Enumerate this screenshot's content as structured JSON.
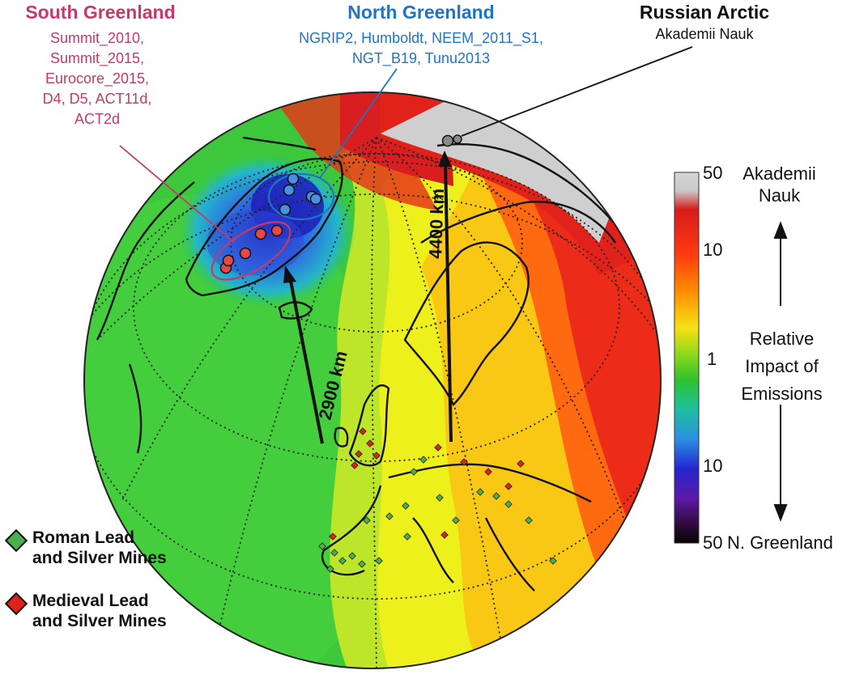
{
  "regions": {
    "south": {
      "title": "South Greenland",
      "lines": [
        "Summit_2010,",
        "Summit_2015,",
        "Eurocore_2015,",
        "D4, D5, ACT11d,",
        "ACT2d"
      ],
      "color": "#c33a6b"
    },
    "north": {
      "title": "North Greenland",
      "lines": [
        "NGRIP2, Humboldt, NEEM_2011_S1,",
        "NGT_B19, Tunu2013"
      ],
      "color": "#1f74c4"
    },
    "russian": {
      "title": "Russian Arctic",
      "lines": [
        "Akademii Nauk"
      ],
      "color": "#111111"
    }
  },
  "distances": {
    "greenland": "2900 km",
    "russian": "4400 km"
  },
  "colorbar": {
    "top_tick": "50",
    "upper_tick": "10",
    "mid_tick": "1",
    "lower_tick": "10",
    "bottom_tick": "50",
    "top_label": "Akademii Nauk",
    "bottom_label": "N. Greenland",
    "middle_label": [
      "Relative",
      "Impact of",
      "Emissions"
    ],
    "scale": "log"
  },
  "legend": {
    "roman": {
      "label_line1": "Roman Lead",
      "label_line2": "and Silver Mines",
      "color": "#4caf50"
    },
    "medieval": {
      "label_line1": "Medieval Lead",
      "label_line2": "and Silver Mines",
      "color": "#e0211c"
    }
  }
}
